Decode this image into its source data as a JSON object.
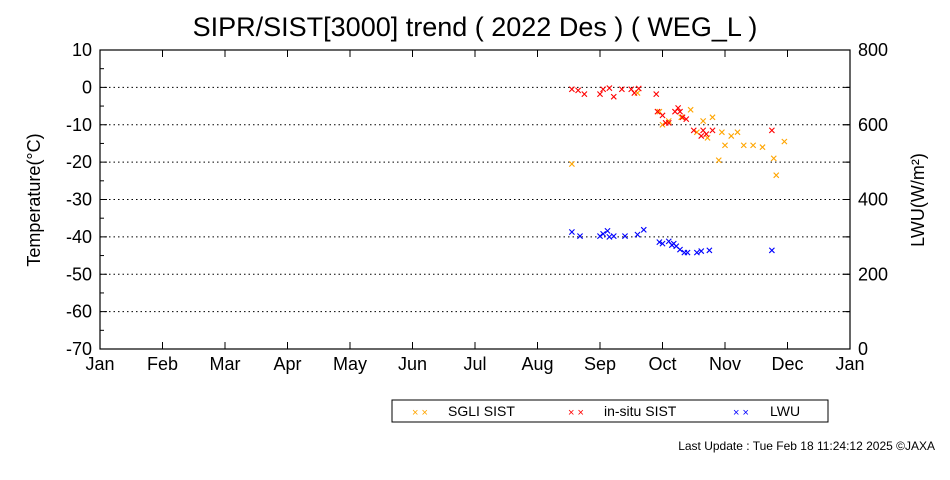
{
  "chart_data": {
    "type": "scatter",
    "title": "SIPR/SIST[3000] trend ( 2022 Des ) ( WEG_L )",
    "ylabel": "Temperature(°C)",
    "y2label": "LWU(W/m²)",
    "ylim": [
      -70,
      10
    ],
    "y2lim": [
      0,
      800
    ],
    "yticks": [
      "10",
      "0",
      "-10",
      "-20",
      "-30",
      "-40",
      "-50",
      "-60",
      "-70"
    ],
    "y2ticks": [
      "800",
      "600",
      "400",
      "200",
      "0"
    ],
    "xticks": [
      "Jan",
      "Feb",
      "Mar",
      "Apr",
      "May",
      "Jun",
      "Jul",
      "Aug",
      "Sep",
      "Oct",
      "Nov",
      "Dec",
      "Jan"
    ],
    "x_unit": "month (Jan = 0)",
    "grid": "horizontal dotted",
    "legend_position": "bottom-right",
    "series": [
      {
        "name": "SGLI SIST",
        "color": "#ffa500",
        "axis": "left",
        "x": [
          7.55,
          8.6,
          8.95,
          9.0,
          9.1,
          9.3,
          9.45,
          9.55,
          9.65,
          9.72,
          9.8,
          9.9,
          9.95,
          10.0,
          10.1,
          10.2,
          10.3,
          10.45,
          10.6,
          10.78,
          10.82,
          10.95
        ],
        "y": [
          -20.5,
          -1.5,
          -6.5,
          -10,
          -9,
          -8,
          -6,
          -12,
          -9,
          -13.5,
          -8,
          -19.5,
          -12,
          -15.5,
          -13,
          -12,
          -15.5,
          -15.5,
          -16,
          -19,
          -23.5,
          -14.5
        ]
      },
      {
        "name": "in-situ SIST",
        "color": "#ff0000",
        "axis": "left",
        "x": [
          7.55,
          7.65,
          7.75,
          8.0,
          8.05,
          8.15,
          8.22,
          8.35,
          8.5,
          8.55,
          8.62,
          8.9,
          8.92,
          9.0,
          9.05,
          9.1,
          9.2,
          9.25,
          9.28,
          9.32,
          9.38,
          9.5,
          9.62,
          9.65,
          9.7,
          9.8,
          10.75
        ],
        "y": [
          -0.5,
          -0.8,
          -1.8,
          -1.8,
          -0.5,
          -0.2,
          -2.5,
          -0.5,
          -0.5,
          -1.5,
          -0.3,
          -1.8,
          -6.5,
          -7.5,
          -9.5,
          -9.5,
          -6.5,
          -5.5,
          -6.5,
          -8,
          -8.5,
          -11.5,
          -13,
          -11.5,
          -12.5,
          -11.5,
          -11.5
        ]
      },
      {
        "name": "LWU",
        "color": "#0000ff",
        "axis": "right",
        "x": [
          7.55,
          7.68,
          8.0,
          8.05,
          8.12,
          8.15,
          8.22,
          8.4,
          8.6,
          8.7,
          8.95,
          9.0,
          9.1,
          9.15,
          9.18,
          9.22,
          9.28,
          9.35,
          9.4,
          9.55,
          9.62,
          9.75,
          10.75
        ],
        "y": [
          313,
          302,
          302,
          308,
          316,
          300,
          302,
          302,
          306,
          319,
          286,
          282,
          288,
          278,
          282,
          275,
          266,
          258,
          258,
          258,
          262,
          264,
          264
        ]
      }
    ]
  },
  "legend": {
    "sgli_label": "SGLI SIST",
    "insitu_label": "in-situ SIST",
    "lwu_label": "LWU"
  },
  "footer": "Last Update : Tue Feb 18 11:24:12 2025 ©JAXA"
}
